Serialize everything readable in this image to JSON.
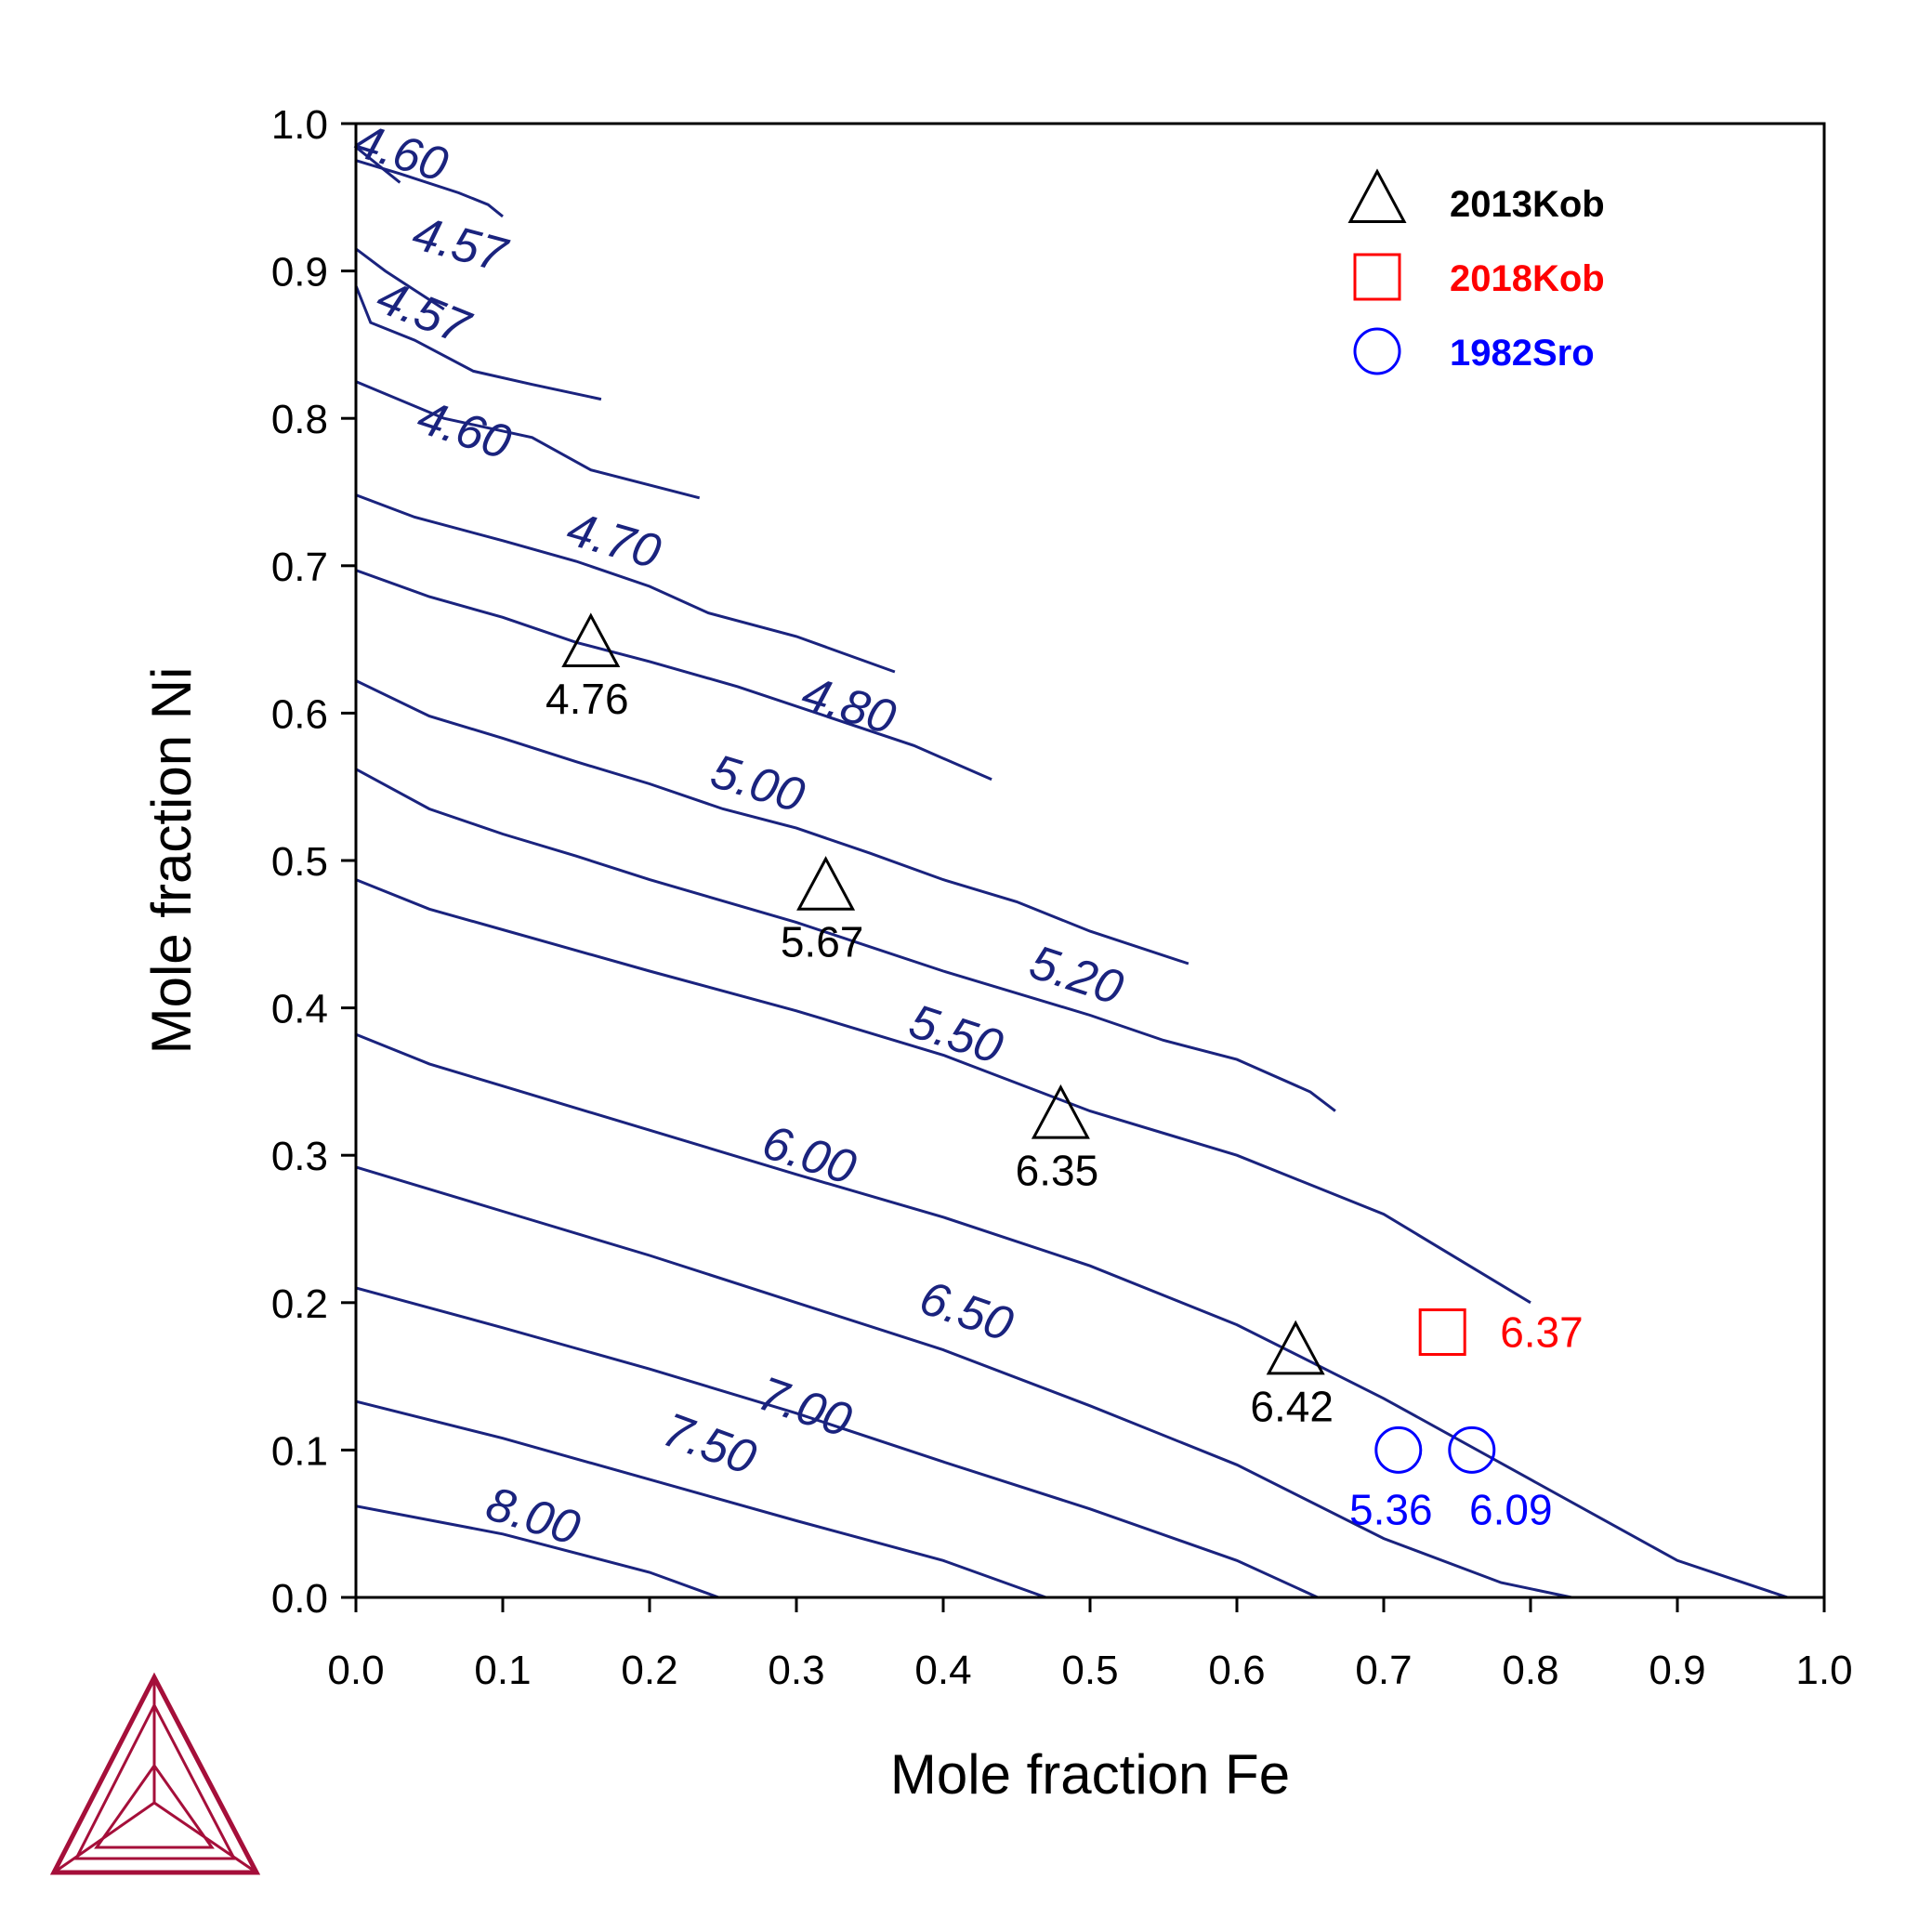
{
  "chart_data": {
    "type": "contour",
    "xlabel": "Mole fraction Fe",
    "ylabel": "Mole fraction Ni",
    "xlim": [
      0.0,
      1.0
    ],
    "ylim": [
      0.0,
      1.0
    ],
    "xticks": [
      "0.0",
      "0.1",
      "0.2",
      "0.3",
      "0.4",
      "0.5",
      "0.6",
      "0.7",
      "0.8",
      "0.9",
      "1.0"
    ],
    "yticks": [
      "0.0",
      "0.1",
      "0.2",
      "0.3",
      "0.4",
      "0.5",
      "0.6",
      "0.7",
      "0.8",
      "0.9",
      "1.0"
    ],
    "grid": false,
    "legend_position": "top-right",
    "contour_color": "#1a237e",
    "contours": [
      {
        "level": "4.60",
        "points": [
          [
            -0.02,
            1.0
          ],
          [
            0.03,
            0.96
          ]
        ],
        "label_at": [
          0.03,
          0.978
        ],
        "label_angle": 17
      },
      {
        "level": "4.57",
        "points": [
          [
            0.0,
            0.975
          ],
          [
            0.03,
            0.966
          ],
          [
            0.07,
            0.953
          ],
          [
            0.09,
            0.945
          ],
          [
            0.1,
            0.937
          ]
        ],
        "label_at": [
          0.07,
          0.916
        ],
        "label_angle": 15
      },
      {
        "level": "4.57",
        "points": [
          [
            0.0,
            0.915
          ],
          [
            0.0,
            0.915
          ],
          [
            0.02,
            0.9
          ],
          [
            0.04,
            0.887
          ],
          [
            0.06,
            0.874
          ]
        ],
        "label_at": [
          0.045,
          0.87
        ],
        "label_angle": 22
      },
      {
        "level": "4.60",
        "points": [
          [
            0.0,
            0.89
          ],
          [
            0.01,
            0.865
          ],
          [
            0.04,
            0.853
          ],
          [
            0.08,
            0.832
          ],
          [
            0.12,
            0.823
          ],
          [
            0.167,
            0.813
          ]
        ],
        "label_at": [
          0.073,
          0.79
        ],
        "label_angle": 18
      },
      {
        "level": "4.70",
        "points": [
          [
            0.0,
            0.825
          ],
          [
            0.06,
            0.8
          ],
          [
            0.12,
            0.787
          ],
          [
            0.16,
            0.765
          ],
          [
            0.234,
            0.746
          ]
        ],
        "label_at": [
          0.175,
          0.715
        ],
        "label_angle": 16
      },
      {
        "level": "4.80",
        "points": [
          [
            0.0,
            0.748
          ],
          [
            0.04,
            0.733
          ],
          [
            0.1,
            0.717
          ],
          [
            0.15,
            0.703
          ],
          [
            0.2,
            0.686
          ],
          [
            0.24,
            0.668
          ],
          [
            0.3,
            0.652
          ],
          [
            0.367,
            0.628
          ]
        ],
        "label_at": [
          0.335,
          0.603
        ],
        "label_angle": 17
      },
      {
        "level": "5.00",
        "points": [
          [
            0.0,
            0.697
          ],
          [
            0.05,
            0.679
          ],
          [
            0.1,
            0.665
          ],
          [
            0.15,
            0.648
          ],
          [
            0.2,
            0.635
          ],
          [
            0.26,
            0.618
          ],
          [
            0.32,
            0.598
          ],
          [
            0.38,
            0.578
          ],
          [
            0.433,
            0.555
          ]
        ],
        "label_at": [
          0.273,
          0.55
        ],
        "label_angle": 17
      },
      {
        "level": "5.20",
        "points": [
          [
            0.0,
            0.622
          ],
          [
            0.05,
            0.598
          ],
          [
            0.1,
            0.583
          ],
          [
            0.15,
            0.567
          ],
          [
            0.2,
            0.552
          ],
          [
            0.25,
            0.535
          ],
          [
            0.3,
            0.522
          ],
          [
            0.35,
            0.505
          ],
          [
            0.4,
            0.487
          ],
          [
            0.45,
            0.472
          ],
          [
            0.5,
            0.452
          ],
          [
            0.567,
            0.43
          ]
        ],
        "label_at": [
          0.49,
          0.42
        ],
        "label_angle": 18
      },
      {
        "level": "5.50",
        "points": [
          [
            0.0,
            0.562
          ],
          [
            0.05,
            0.535
          ],
          [
            0.1,
            0.518
          ],
          [
            0.15,
            0.503
          ],
          [
            0.2,
            0.487
          ],
          [
            0.3,
            0.458
          ],
          [
            0.4,
            0.425
          ],
          [
            0.5,
            0.395
          ],
          [
            0.55,
            0.378
          ],
          [
            0.6,
            0.365
          ],
          [
            0.65,
            0.343
          ],
          [
            0.667,
            0.33
          ]
        ],
        "label_at": [
          0.408,
          0.38
        ],
        "label_angle": 18
      },
      {
        "level": "6.00",
        "points": [
          [
            0.0,
            0.487
          ],
          [
            0.05,
            0.467
          ],
          [
            0.1,
            0.453
          ],
          [
            0.2,
            0.425
          ],
          [
            0.3,
            0.398
          ],
          [
            0.4,
            0.368
          ],
          [
            0.5,
            0.33
          ],
          [
            0.6,
            0.3
          ],
          [
            0.7,
            0.26
          ],
          [
            0.8,
            0.2
          ]
        ],
        "label_at": [
          0.308,
          0.298
        ],
        "label_angle": 18
      },
      {
        "level": "6.50",
        "points": [
          [
            0.0,
            0.382
          ],
          [
            0.05,
            0.362
          ],
          [
            0.1,
            0.347
          ],
          [
            0.2,
            0.317
          ],
          [
            0.3,
            0.287
          ],
          [
            0.4,
            0.258
          ],
          [
            0.5,
            0.225
          ],
          [
            0.6,
            0.185
          ],
          [
            0.7,
            0.135
          ],
          [
            0.8,
            0.08
          ],
          [
            0.9,
            0.025
          ],
          [
            0.99,
            -0.005
          ]
        ],
        "label_at": [
          0.415,
          0.192
        ],
        "label_angle": 19
      },
      {
        "level": "7.00",
        "points": [
          [
            0.0,
            0.292
          ],
          [
            0.1,
            0.262
          ],
          [
            0.2,
            0.232
          ],
          [
            0.3,
            0.2
          ],
          [
            0.4,
            0.168
          ],
          [
            0.5,
            0.13
          ],
          [
            0.6,
            0.09
          ],
          [
            0.7,
            0.04
          ],
          [
            0.78,
            0.01
          ],
          [
            0.828,
            0.0
          ]
        ],
        "label_at": [
          0.305,
          0.127
        ],
        "label_angle": 19
      },
      {
        "level": "7.50",
        "points": [
          [
            0.0,
            0.21
          ],
          [
            0.1,
            0.183
          ],
          [
            0.2,
            0.155
          ],
          [
            0.3,
            0.125
          ],
          [
            0.4,
            0.092
          ],
          [
            0.5,
            0.06
          ],
          [
            0.6,
            0.025
          ],
          [
            0.655,
            0.0
          ]
        ],
        "label_at": [
          0.24,
          0.102
        ],
        "label_angle": 20
      },
      {
        "level": "8.00",
        "points": [
          [
            0.0,
            0.133
          ],
          [
            0.1,
            0.108
          ],
          [
            0.2,
            0.08
          ],
          [
            0.3,
            0.052
          ],
          [
            0.4,
            0.025
          ],
          [
            0.47,
            0.0
          ]
        ],
        "label_at": [
          0.12,
          0.053
        ],
        "label_angle": 17
      },
      {
        "level": "",
        "points": [
          [
            0.0,
            0.062
          ],
          [
            0.1,
            0.043
          ],
          [
            0.2,
            0.017
          ],
          [
            0.247,
            0.0
          ]
        ],
        "label_at": null,
        "label_angle": 0
      }
    ],
    "series": [
      {
        "name": "2013Kob",
        "marker": "triangle",
        "color": "#000000",
        "points": [
          {
            "x": 0.16,
            "y": 0.645,
            "label": "4.76"
          },
          {
            "x": 0.32,
            "y": 0.48,
            "label": "5.67"
          },
          {
            "x": 0.48,
            "y": 0.325,
            "label": "6.35"
          },
          {
            "x": 0.64,
            "y": 0.165,
            "label": "6.42"
          }
        ]
      },
      {
        "name": "2018Kob",
        "marker": "square",
        "color": "#ff0000",
        "points": [
          {
            "x": 0.74,
            "y": 0.18,
            "label": "6.37"
          }
        ]
      },
      {
        "name": "1982Sro",
        "marker": "circle",
        "color": "#0000ff",
        "points": [
          {
            "x": 0.71,
            "y": 0.1,
            "label": "5.36"
          },
          {
            "x": 0.76,
            "y": 0.1,
            "label": "6.09"
          }
        ]
      }
    ]
  },
  "logo": {
    "name": "thermo-calc-logo",
    "color": "#a50f3a"
  }
}
